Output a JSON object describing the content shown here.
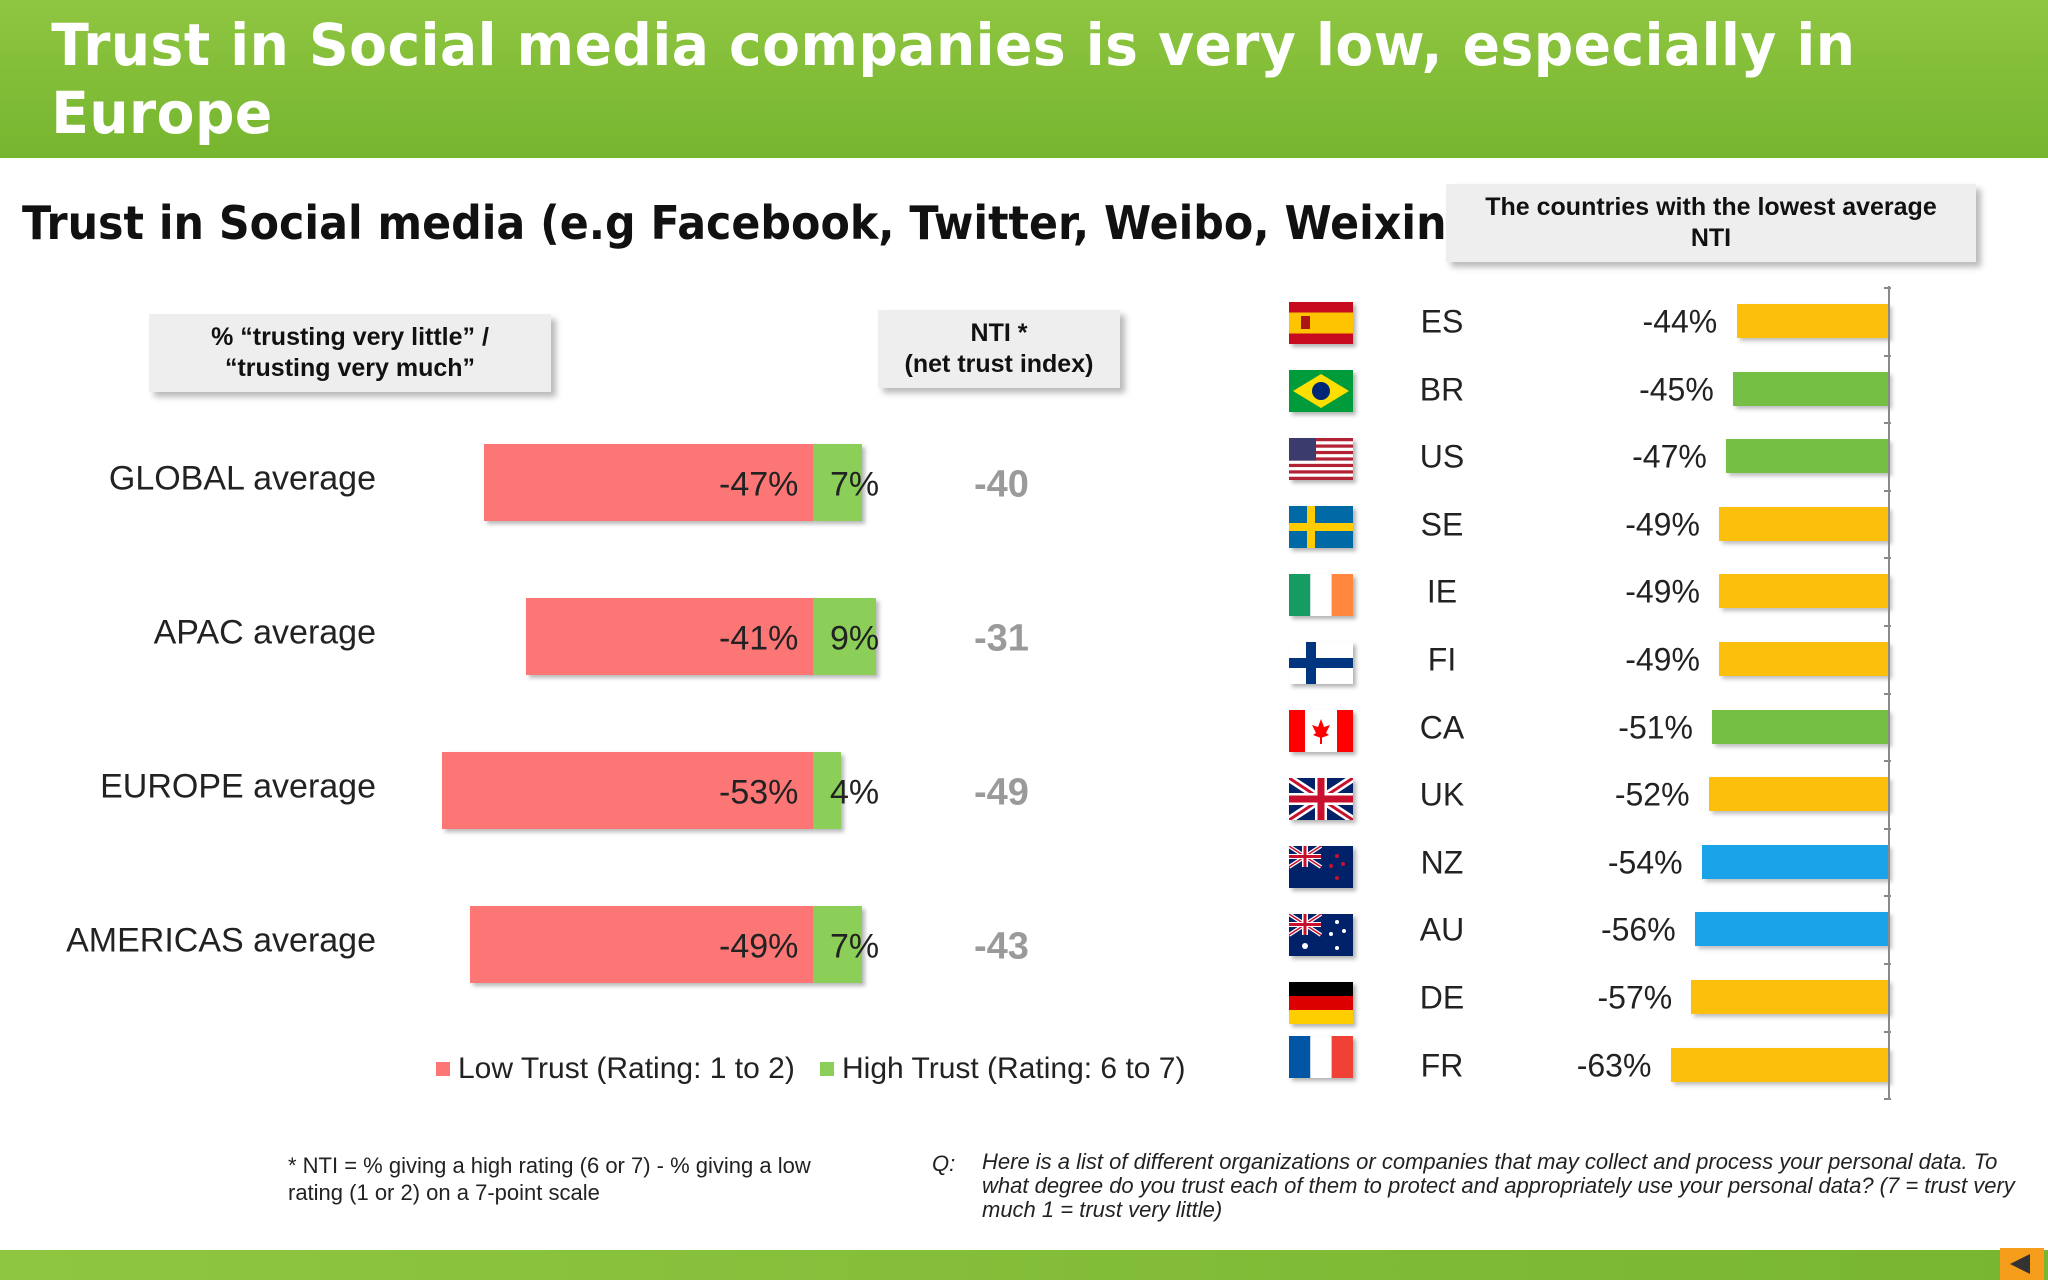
{
  "header": {
    "title": "Trust in Social media companies is very low, especially in Europe"
  },
  "subtitle": "Trust in Social media (e.g Facebook, Twitter, Weibo, Weixin)",
  "left_box": {
    "line1": "% “trusting very  little” /",
    "line2": "“trusting very much”"
  },
  "nti_box": {
    "line1": "NTI *",
    "line2": "(net trust index)"
  },
  "right_box": {
    "line1": "The countries with the lowest average",
    "line2": "NTI"
  },
  "legend": {
    "low": "Low Trust (Rating: 1 to 2)",
    "high": "High Trust (Rating: 6 to 7)"
  },
  "colors": {
    "low": "#fd7676",
    "high": "#8bcf58",
    "europe": "#fcbf0b",
    "americas": "#74bf44",
    "apac": "#1aa3e8"
  },
  "footnote": {
    "nti": "* NTI = % giving a high rating (6 or 7) - % giving a low rating (1 or 2) on a 7-point scale",
    "q_label": "Q:",
    "q_text": "Here is a list of different organizations or companies that may collect and process your personal data.  To what degree do you trust each of them to protect and appropriately use your personal data? (7 = trust very much 1 = trust very little)"
  },
  "chart_data": [
    {
      "type": "bar",
      "stacked": true,
      "title": "Trust in Social media (e.g Facebook, Twitter, Weibo, Weixin)",
      "categories": [
        "GLOBAL average",
        "APAC average",
        "EUROPE average",
        "AMERICAS average"
      ],
      "series": [
        {
          "name": "Low Trust (Rating: 1 to 2)",
          "values": [
            -47,
            -41,
            -53,
            -49
          ],
          "labels": [
            "-47%",
            "-41%",
            "-53%",
            "-49%"
          ]
        },
        {
          "name": "High Trust (Rating: 6 to 7)",
          "values": [
            7,
            9,
            4,
            7
          ],
          "labels": [
            "7%",
            "9%",
            "4%",
            "7%"
          ]
        }
      ],
      "nti": [
        -40,
        -31,
        -49,
        -43
      ],
      "nti_labels": [
        "-40",
        "-31",
        "-49",
        "-43"
      ]
    },
    {
      "type": "bar",
      "orientation": "horizontal",
      "title": "The countries with the lowest average NTI",
      "categories": [
        "ES",
        "BR",
        "US",
        "SE",
        "IE",
        "FI",
        "CA",
        "UK",
        "NZ",
        "AU",
        "DE",
        "FR"
      ],
      "values": [
        -44,
        -45,
        -47,
        -49,
        -49,
        -49,
        -51,
        -52,
        -54,
        -56,
        -57,
        -63
      ],
      "labels": [
        "-44%",
        "-45%",
        "-47%",
        "-49%",
        "-49%",
        "-49%",
        "-51%",
        "-52%",
        "-54%",
        "-56%",
        "-57%",
        "-63%"
      ],
      "regions": [
        "europe",
        "americas",
        "americas",
        "europe",
        "europe",
        "europe",
        "americas",
        "europe",
        "apac",
        "apac",
        "europe",
        "europe"
      ]
    }
  ]
}
